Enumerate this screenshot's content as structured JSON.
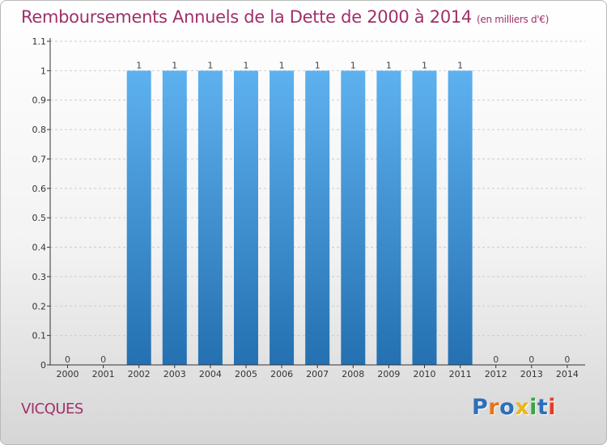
{
  "title": "Remboursements Annuels de la Dette de 2000 à 2014",
  "unit_note": "(en milliers d'€)",
  "commune": "VICQUES",
  "logo": {
    "text": "Proxiti",
    "letter_colors": [
      "#2c6fb8",
      "#e8731a",
      "#2c6fb8",
      "#e8b81a",
      "#3aa540",
      "#2c6fb8",
      "#e63b2a"
    ]
  },
  "colors": {
    "title": "#a0306a",
    "bar_top": "#5eb1ef",
    "bar_bottom": "#2470b1",
    "axis": "#333333",
    "grid": "#cccccc"
  },
  "chart_data": {
    "type": "bar",
    "title": "Remboursements Annuels de la Dette de 2000 à 2014",
    "xlabel": "",
    "ylabel": "",
    "categories": [
      "2000",
      "2001",
      "2002",
      "2003",
      "2004",
      "2005",
      "2006",
      "2007",
      "2008",
      "2009",
      "2010",
      "2011",
      "2012",
      "2013",
      "2014"
    ],
    "values": [
      0,
      0,
      1,
      1,
      1,
      1,
      1,
      1,
      1,
      1,
      1,
      1,
      0,
      0,
      0
    ],
    "data_labels": [
      "0",
      "0",
      "1",
      "1",
      "1",
      "1",
      "1",
      "1",
      "1",
      "1",
      "1",
      "1",
      "0",
      "0",
      "0"
    ],
    "ylim": [
      0,
      1.1
    ],
    "yticks": [
      0,
      0.1,
      0.2,
      0.3,
      0.4,
      0.5,
      0.6,
      0.7,
      0.8,
      0.9,
      1,
      1.1
    ],
    "ytick_labels": [
      "0",
      "0.1",
      "0.2",
      "0.3",
      "0.4",
      "0.5",
      "0.6",
      "0.7",
      "0.8",
      "0.9",
      "1",
      "1.1"
    ],
    "grid": "horizontal-dashed",
    "legend": "none"
  }
}
